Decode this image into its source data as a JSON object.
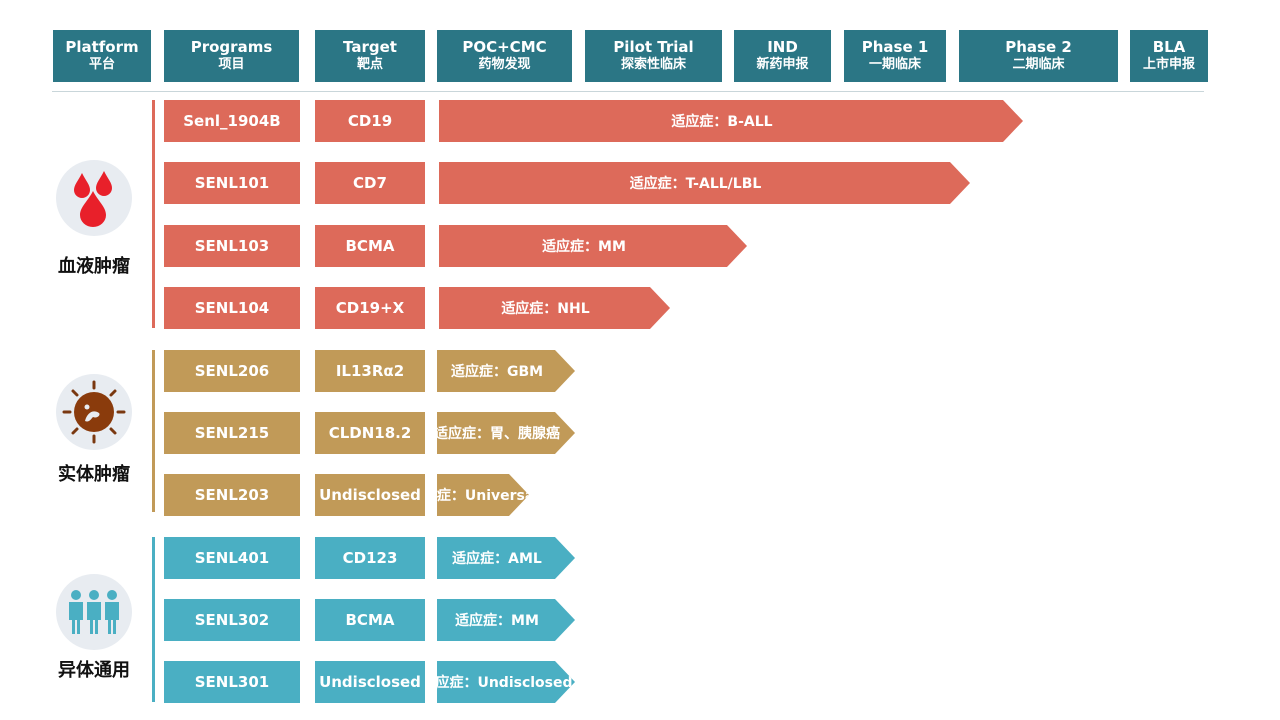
{
  "header": [
    {
      "en": "Platform",
      "zh": "平台"
    },
    {
      "en": "Programs",
      "zh": "项目"
    },
    {
      "en": "Target",
      "zh": "靶点"
    },
    {
      "en": "POC+CMC",
      "zh": "药物发现"
    },
    {
      "en": "Pilot Trial",
      "zh": "探索性临床"
    },
    {
      "en": "IND",
      "zh": "新药申报"
    },
    {
      "en": "Phase 1",
      "zh": "一期临床"
    },
    {
      "en": "Phase 2",
      "zh": "二期临床"
    },
    {
      "en": "BLA",
      "zh": "上市申报"
    }
  ],
  "colors": {
    "header": "#2b7685",
    "heme": "#dd6a5a",
    "solid": "#c19a58",
    "universal": "#4aafc3"
  },
  "categories": [
    {
      "label": "血液肿瘤",
      "icon": "blood-drops-icon"
    },
    {
      "label": "实体肿瘤",
      "icon": "tumor-cell-icon"
    },
    {
      "label": "异体通用",
      "icon": "people-icon"
    }
  ],
  "programs": [
    {
      "program": "Senl_1904B",
      "target": "CD19",
      "indication": "适应症：B-ALL",
      "stage": "Phase 1",
      "progress": 0.76
    },
    {
      "program": "SENL101",
      "target": "CD7",
      "indication": "适应症：T-ALL/LBL",
      "stage": "IND",
      "progress": 0.69
    },
    {
      "program": "SENL103",
      "target": "BCMA",
      "indication": "适应症：MM",
      "stage": "Pilot Trial",
      "progress": 0.4
    },
    {
      "program": "SENL104",
      "target": "CD19+X",
      "indication": "适应症：NHL",
      "stage": "Pilot Trial",
      "progress": 0.3
    },
    {
      "program": "SENL206",
      "target": "IL13Rα2",
      "indication": "适应症：GBM",
      "stage": "Pilot Trial",
      "progress": 0.18
    },
    {
      "program": "SENL215",
      "target": "CLDN18.2",
      "indication": "适应症：胃、胰腺癌",
      "stage": "Pilot Trial",
      "progress": 0.18
    },
    {
      "program": "SENL203",
      "target": "Undisclosed",
      "indication": "适应症：Universal",
      "stage": "POC+CMC",
      "progress": 0.12
    },
    {
      "program": "SENL401",
      "target": "CD123",
      "indication": "适应症：AML",
      "stage": "Pilot Trial",
      "progress": 0.18
    },
    {
      "program": "SENL302",
      "target": "BCMA",
      "indication": "适应症：MM",
      "stage": "Pilot Trial",
      "progress": 0.18
    },
    {
      "program": "SENL301",
      "target": "Undisclosed",
      "indication": "适应症：Undisclosed",
      "stage": "Pilot Trial",
      "progress": 0.18
    }
  ]
}
